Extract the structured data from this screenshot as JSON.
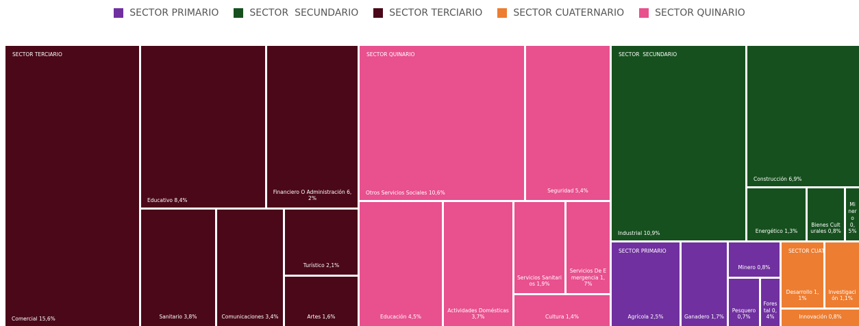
{
  "chart_data": {
    "type": "treemap",
    "series": [
      {
        "name": "SECTOR PRIMARIO",
        "color": "#7030a0",
        "categories": [
          "Agrícola",
          "Ganadero",
          "Minero",
          "Pesquero",
          "Forestal"
        ],
        "values": [
          2.5,
          1.7,
          0.8,
          0.7,
          0.4
        ],
        "value_labels": [
          "2,5%",
          "1,7%",
          "0,8%",
          "0,7%",
          "0,4%"
        ]
      },
      {
        "name": "SECTOR  SECUNDARIO",
        "color": "#16501e",
        "categories": [
          "Industrial",
          "Construcción",
          "Energético",
          "Bienes Culturales",
          "Minero"
        ],
        "values": [
          10.9,
          6.9,
          1.3,
          0.8,
          0.5
        ],
        "value_labels": [
          "10,9%",
          "6,9%",
          "1,3%",
          "0,8%",
          "0,5%"
        ]
      },
      {
        "name": "SECTOR TERCIARIO",
        "color": "#4a0818",
        "categories": [
          "Comercial",
          "Educativo",
          "Financiero O Administración",
          "Sanitario",
          "Comunicaciones",
          "Turístico",
          "Artes"
        ],
        "values": [
          15.6,
          8.4,
          6.2,
          3.8,
          3.4,
          2.1,
          1.6
        ],
        "value_labels": [
          "15,6%",
          "8,4%",
          "6,2%",
          "3,8%",
          "3,4%",
          "2,1%",
          "1,6%"
        ]
      },
      {
        "name": "SECTOR CUATERNARIO",
        "color": "#ed7d31",
        "categories": [
          "Desarrollo",
          "Investigación",
          "Innovación"
        ],
        "values": [
          1.1,
          1.1,
          0.8
        ],
        "value_labels": [
          "1,1%",
          "1,1%",
          "0,8%"
        ]
      },
      {
        "name": "SECTOR QUINARIO",
        "color": "#e8508e",
        "categories": [
          "Otros Servicios Sociales",
          "Seguridad",
          "Educación",
          "Actividades Domésticas",
          "Servicios Sanitarios",
          "Servicios De Emergencia",
          "Cultura"
        ],
        "values": [
          10.6,
          5.4,
          4.5,
          3.7,
          1.9,
          1.7,
          1.4
        ],
        "value_labels": [
          "10,6%",
          "5,4%",
          "4,5%",
          "3,7%",
          "1,9%",
          "1,7%",
          "1,4%"
        ]
      }
    ],
    "legend": "top"
  }
}
